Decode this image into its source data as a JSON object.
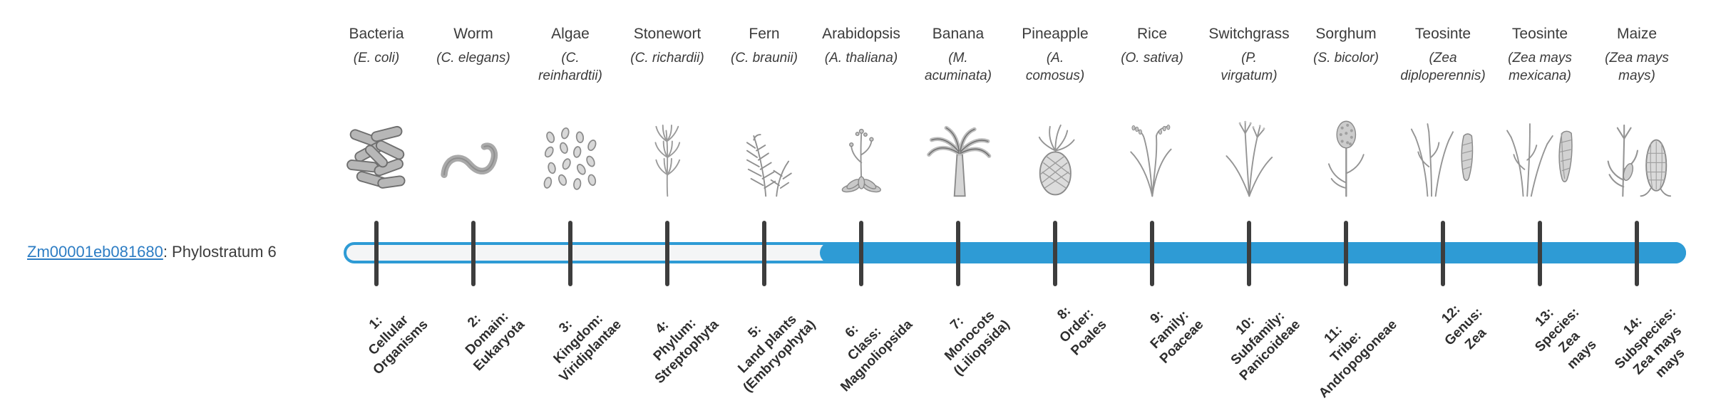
{
  "gene": {
    "id": "Zm00001eb081680",
    "suffix": ": Phylostratum 6",
    "phylostratum": 6,
    "link_color": "#2d7dc4"
  },
  "bar": {
    "fill_color": "#2e9bd5",
    "track_color": "#f4f5f6",
    "tick_color": "#3d3d3d",
    "filled_from_stratum": 6,
    "total_strata": 14
  },
  "organisms": [
    {
      "stratum": 1,
      "name": "Bacteria",
      "sci": "(E. coli)",
      "icon": "bacteria-icon",
      "stratum_label": "1:\nCellular\nOrganisms"
    },
    {
      "stratum": 2,
      "name": "Worm",
      "sci": "(C. elegans)",
      "icon": "worm-icon",
      "stratum_label": "2:\nDomain:\nEukaryota"
    },
    {
      "stratum": 3,
      "name": "Algae",
      "sci": "(C.\nreinhardtii)",
      "icon": "algae-icon",
      "stratum_label": "3:\nKingdom:\nViridiplantae"
    },
    {
      "stratum": 4,
      "name": "Stonewort",
      "sci": "(C. richardii)",
      "icon": "stonewort-icon",
      "stratum_label": "4:\nPhylum:\nStreptophyta"
    },
    {
      "stratum": 5,
      "name": "Fern",
      "sci": "(C. braunii)",
      "icon": "fern-icon",
      "stratum_label": "5:\nLand plants\n(Embryophyta)"
    },
    {
      "stratum": 6,
      "name": "Arabidopsis",
      "sci": "(A. thaliana)",
      "icon": "arabidopsis-icon",
      "stratum_label": "6:\nClass:\nMagnoliopsida"
    },
    {
      "stratum": 7,
      "name": "Banana",
      "sci": "(M.\nacuminata)",
      "icon": "banana-icon",
      "stratum_label": "7:\nMonocots\n(Liliopsida)"
    },
    {
      "stratum": 8,
      "name": "Pineapple",
      "sci": "(A.\ncomosus)",
      "icon": "pineapple-icon",
      "stratum_label": "8:\nOrder:\nPoales"
    },
    {
      "stratum": 9,
      "name": "Rice",
      "sci": "(O. sativa)",
      "icon": "rice-icon",
      "stratum_label": "9:\nFamily:\nPoaceae"
    },
    {
      "stratum": 10,
      "name": "Switchgrass",
      "sci": "(P.\nvirgatum)",
      "icon": "switchgrass-icon",
      "stratum_label": "10:\nSubfamily:\nPanicoideae"
    },
    {
      "stratum": 11,
      "name": "Sorghum",
      "sci": "(S. bicolor)",
      "icon": "sorghum-icon",
      "stratum_label": "11:\nTribe:\nAndropogoneae"
    },
    {
      "stratum": 12,
      "name": "Teosinte",
      "sci": "(Zea\ndiploperennis)",
      "icon": "teosinte-diploperennis-icon",
      "stratum_label": "12:\nGenus:\nZea"
    },
    {
      "stratum": 13,
      "name": "Teosinte",
      "sci": "(Zea mays\nmexicana)",
      "icon": "teosinte-mexicana-icon",
      "stratum_label": "13:\nSpecies:\nZea\nmays"
    },
    {
      "stratum": 14,
      "name": "Maize",
      "sci": "(Zea mays\nmays)",
      "icon": "maize-icon",
      "stratum_label": "14:\nSubspecies:\nZea mays\nmays"
    }
  ]
}
